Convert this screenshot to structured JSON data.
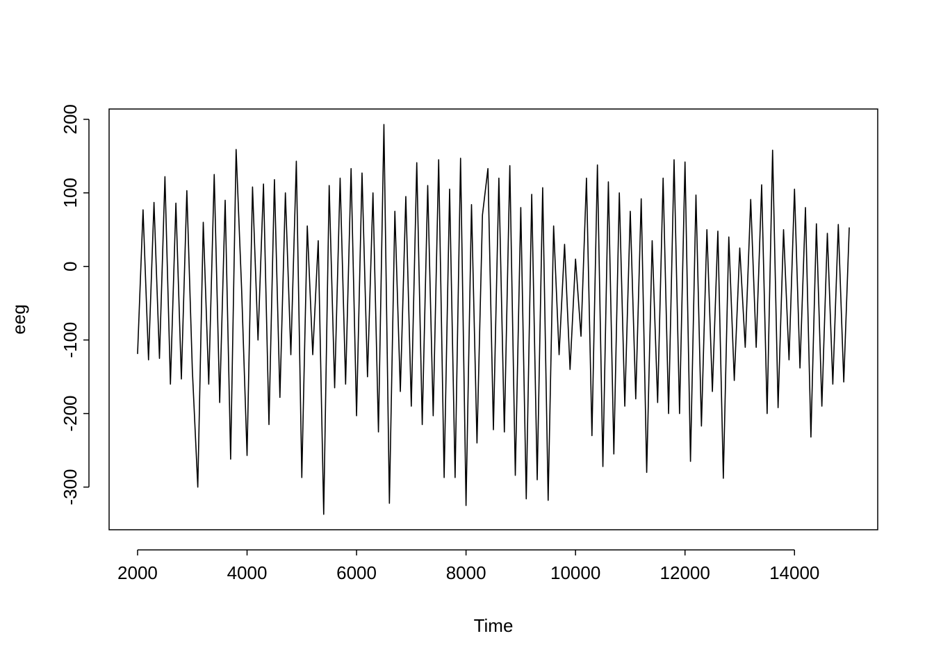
{
  "chart_data": {
    "type": "line",
    "x_label": "Time",
    "y_label": "eeg",
    "x": [
      2000,
      2100,
      2200,
      2300,
      2400,
      2500,
      2600,
      2700,
      2800,
      2900,
      3000,
      3100,
      3200,
      3300,
      3400,
      3500,
      3600,
      3700,
      3800,
      3900,
      4000,
      4100,
      4200,
      4300,
      4400,
      4500,
      4600,
      4700,
      4800,
      4900,
      5000,
      5100,
      5200,
      5300,
      5400,
      5500,
      5600,
      5700,
      5800,
      5900,
      6000,
      6100,
      6200,
      6300,
      6400,
      6500,
      6600,
      6700,
      6800,
      6900,
      7000,
      7100,
      7200,
      7300,
      7400,
      7500,
      7600,
      7700,
      7800,
      7900,
      8000,
      8100,
      8200,
      8300,
      8400,
      8500,
      8600,
      8700,
      8800,
      8900,
      9000,
      9100,
      9200,
      9300,
      9400,
      9500,
      9600,
      9700,
      9800,
      9900,
      10000,
      10100,
      10200,
      10300,
      10400,
      10500,
      10600,
      10700,
      10800,
      10900,
      11000,
      11100,
      11200,
      11300,
      11400,
      11500,
      11600,
      11700,
      11800,
      11900,
      12000,
      12100,
      12200,
      12300,
      12400,
      12500,
      12600,
      12700,
      12800,
      12900,
      13000,
      13100,
      13200,
      13300,
      13400,
      13500,
      13600,
      13700,
      13800,
      13900,
      14000,
      14100,
      14200,
      14300,
      14400,
      14500,
      14600,
      14700,
      14800,
      14900,
      15000
    ],
    "values": [
      -119,
      77,
      -127,
      87,
      -125,
      122,
      -160,
      86,
      -153,
      103,
      -140,
      -300,
      60,
      -160,
      125,
      -185,
      90,
      -262,
      159,
      -30,
      -257,
      108,
      -100,
      112,
      -215,
      118,
      -178,
      100,
      -120,
      143,
      -287,
      55,
      -120,
      35,
      -337,
      110,
      -165,
      120,
      -160,
      133,
      -203,
      127,
      -150,
      100,
      -225,
      193,
      -322,
      75,
      -170,
      95,
      -190,
      141,
      -215,
      110,
      -203,
      145,
      -287,
      105,
      -287,
      147,
      -325,
      84,
      -240,
      70,
      133,
      -222,
      120,
      -225,
      137,
      -284,
      80,
      -316,
      98,
      -290,
      107,
      -318,
      55,
      -120,
      30,
      -140,
      10,
      -95,
      120,
      -230,
      138,
      -272,
      115,
      -255,
      100,
      -190,
      75,
      -180,
      92,
      -280,
      35,
      -185,
      120,
      -200,
      145,
      -200,
      142,
      -265,
      97,
      -217,
      50,
      -170,
      48,
      -288,
      40,
      -155,
      25,
      -110,
      91,
      -110,
      111,
      -200,
      158,
      -192,
      50,
      -127,
      105,
      -138,
      80,
      -232,
      58,
      -190,
      45,
      -160,
      57,
      -157,
      53
    ],
    "color": "#000000",
    "xlim": [
      1480,
      15520
    ],
    "ylim": [
      -358,
      214
    ],
    "xticks": [
      2000,
      4000,
      6000,
      8000,
      10000,
      12000,
      14000
    ],
    "yticks": [
      -300,
      -200,
      -100,
      0,
      100,
      200
    ]
  }
}
